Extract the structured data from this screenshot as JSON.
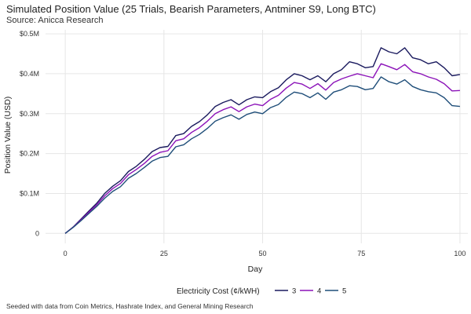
{
  "title": "Simulated Position Value (25 Trials, Bearish Parameters, Antminer S9, Long BTC)",
  "subtitle": "Source: Anicca Research",
  "caption": "Seeded with data from Coin Metrics, Hashrate Index, and General Mining Research",
  "chart_data": {
    "type": "line",
    "xlabel": "Day",
    "ylabel": "Position Value (USD)",
    "xlim": [
      -5,
      102
    ],
    "ylim": [
      -25000,
      510000
    ],
    "x_ticks": [
      0,
      25,
      50,
      75,
      100
    ],
    "x_tick_labels": [
      "0",
      "25",
      "50",
      "75",
      "100"
    ],
    "y_ticks": [
      0,
      100000,
      200000,
      300000,
      400000,
      500000
    ],
    "y_tick_labels": [
      "0",
      "$0.1M",
      "$0.2M",
      "$0.3M",
      "$0.4M",
      "$0.5M"
    ],
    "grid": true,
    "legend": {
      "title": "Electricity Cost (¢/kWH)",
      "position": "bottom"
    },
    "x": [
      0,
      2,
      4,
      6,
      8,
      10,
      12,
      14,
      16,
      18,
      20,
      22,
      24,
      26,
      28,
      30,
      32,
      34,
      36,
      38,
      40,
      42,
      44,
      46,
      48,
      50,
      52,
      54,
      56,
      58,
      60,
      62,
      64,
      66,
      68,
      70,
      72,
      74,
      76,
      78,
      80,
      82,
      84,
      86,
      88,
      90,
      92,
      94,
      96,
      98,
      100
    ],
    "series": [
      {
        "name": "3",
        "color": "#1a1a5e",
        "values": [
          0,
          16000,
          36000,
          56000,
          76000,
          100000,
          118000,
          132000,
          155000,
          168000,
          185000,
          205000,
          215000,
          218000,
          245000,
          250000,
          268000,
          280000,
          297000,
          318000,
          328000,
          335000,
          322000,
          335000,
          342000,
          340000,
          355000,
          365000,
          385000,
          400000,
          395000,
          385000,
          395000,
          380000,
          400000,
          410000,
          430000,
          425000,
          415000,
          418000,
          465000,
          455000,
          450000,
          465000,
          440000,
          435000,
          425000,
          430000,
          415000,
          395000,
          398000
        ]
      },
      {
        "name": "4",
        "color": "#8b12b8",
        "values": [
          0,
          15500,
          34000,
          53000,
          72000,
          94000,
          112000,
          125000,
          147000,
          160000,
          175000,
          193000,
          203000,
          207000,
          232000,
          237000,
          253000,
          265000,
          281000,
          300000,
          310000,
          317000,
          305000,
          317000,
          324000,
          320000,
          336000,
          346000,
          364000,
          378000,
          374000,
          363000,
          375000,
          359000,
          378000,
          387000,
          394000,
          400000,
          395000,
          390000,
          425000,
          418000,
          410000,
          423000,
          405000,
          400000,
          392000,
          386000,
          375000,
          357000,
          358000
        ]
      },
      {
        "name": "5",
        "color": "#1f4e79",
        "values": [
          0,
          15000,
          32000,
          50000,
          68000,
          88000,
          105000,
          117000,
          138000,
          150000,
          165000,
          181000,
          190000,
          193000,
          217000,
          222000,
          237000,
          248000,
          263000,
          281000,
          290000,
          297000,
          286000,
          298000,
          304000,
          300000,
          315000,
          323000,
          341000,
          354000,
          350000,
          340000,
          352000,
          336000,
          354000,
          360000,
          370000,
          368000,
          360000,
          363000,
          392000,
          380000,
          374000,
          385000,
          368000,
          360000,
          355000,
          352000,
          340000,
          320000,
          318000
        ]
      }
    ]
  }
}
